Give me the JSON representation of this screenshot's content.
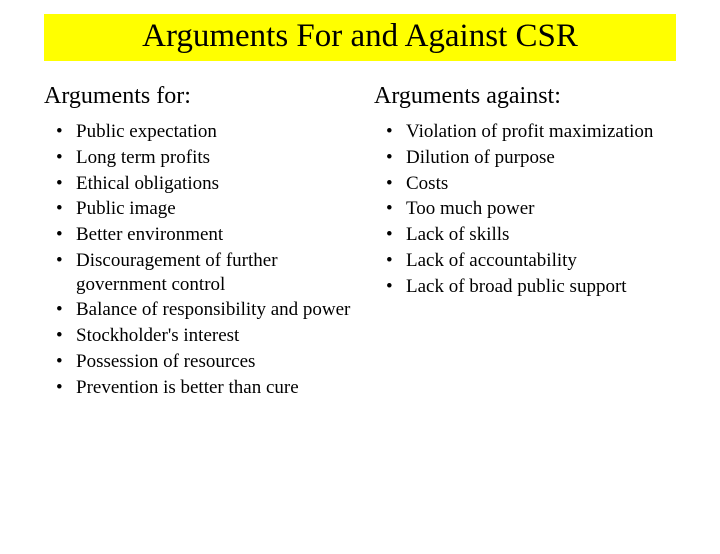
{
  "title": {
    "text": "Arguments For and Against CSR",
    "background_color": "#ffff00",
    "text_color": "#000000",
    "fontsize": 33
  },
  "left": {
    "heading": "Arguments for:",
    "items": [
      "Public expectation",
      "Long term profits",
      "Ethical obligations",
      "Public image",
      "Better environment",
      "Discouragement of further government control",
      "Balance of responsibility and power",
      "Stockholder's interest",
      "Possession of resources",
      "Prevention is better than cure"
    ]
  },
  "right": {
    "heading": "Arguments against:",
    "items": [
      "Violation of profit maximization",
      "Dilution of purpose",
      "Costs",
      "Too much power",
      "Lack of skills",
      "Lack of accountability",
      "Lack of broad public support"
    ]
  },
  "body_fontsize": 19,
  "heading_fontsize": 24,
  "background_color": "#ffffff"
}
